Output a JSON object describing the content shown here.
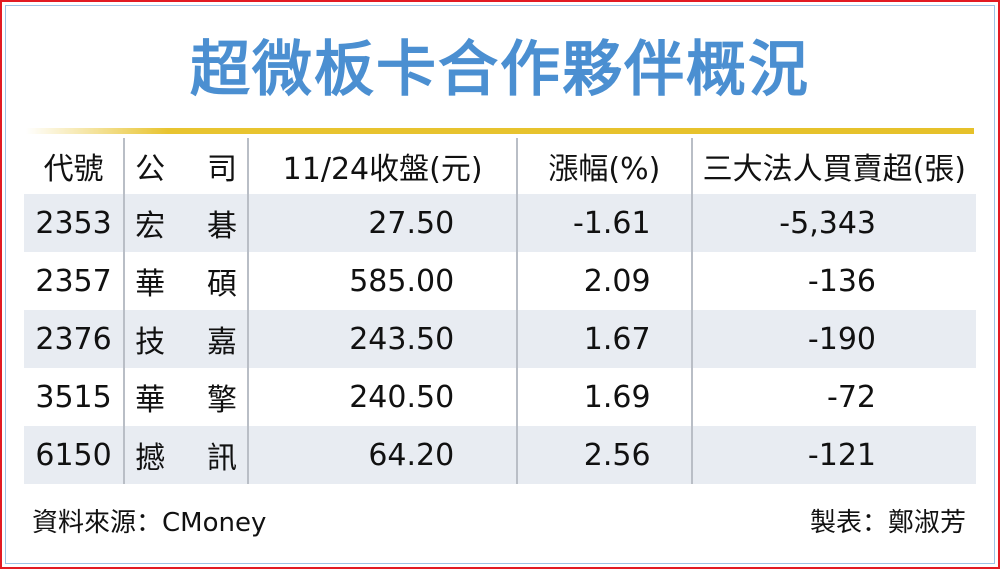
{
  "title": "超微板卡合作夥伴概況",
  "table": {
    "headers": [
      "代號",
      "公　　司",
      "11/24收盤(元)",
      "漲幅(%)",
      "三大法人買賣超(張)"
    ],
    "company_header": [
      "公",
      "司"
    ],
    "rows": [
      {
        "code": "2353",
        "name": [
          "宏",
          "碁"
        ],
        "close": "27.50",
        "change": "-1.61",
        "net": "-5,343"
      },
      {
        "code": "2357",
        "name": [
          "華",
          "碩"
        ],
        "close": "585.00",
        "change": "2.09",
        "net": "-136"
      },
      {
        "code": "2376",
        "name": [
          "技",
          "嘉"
        ],
        "close": "243.50",
        "change": "1.67",
        "net": "-190"
      },
      {
        "code": "3515",
        "name": [
          "華",
          "擎"
        ],
        "close": "240.50",
        "change": "1.69",
        "net": "-72"
      },
      {
        "code": "6150",
        "name": [
          "撼",
          "訊"
        ],
        "close": "64.20",
        "change": "2.56",
        "net": "-121"
      }
    ]
  },
  "footer": {
    "source": "資料來源：CMoney",
    "maker": "製表：鄭淑芳"
  },
  "colors": {
    "title": "#4b8fd1",
    "rule": "#e6c12a",
    "stripe": "#e8ecf2",
    "border": "#e21b23"
  }
}
